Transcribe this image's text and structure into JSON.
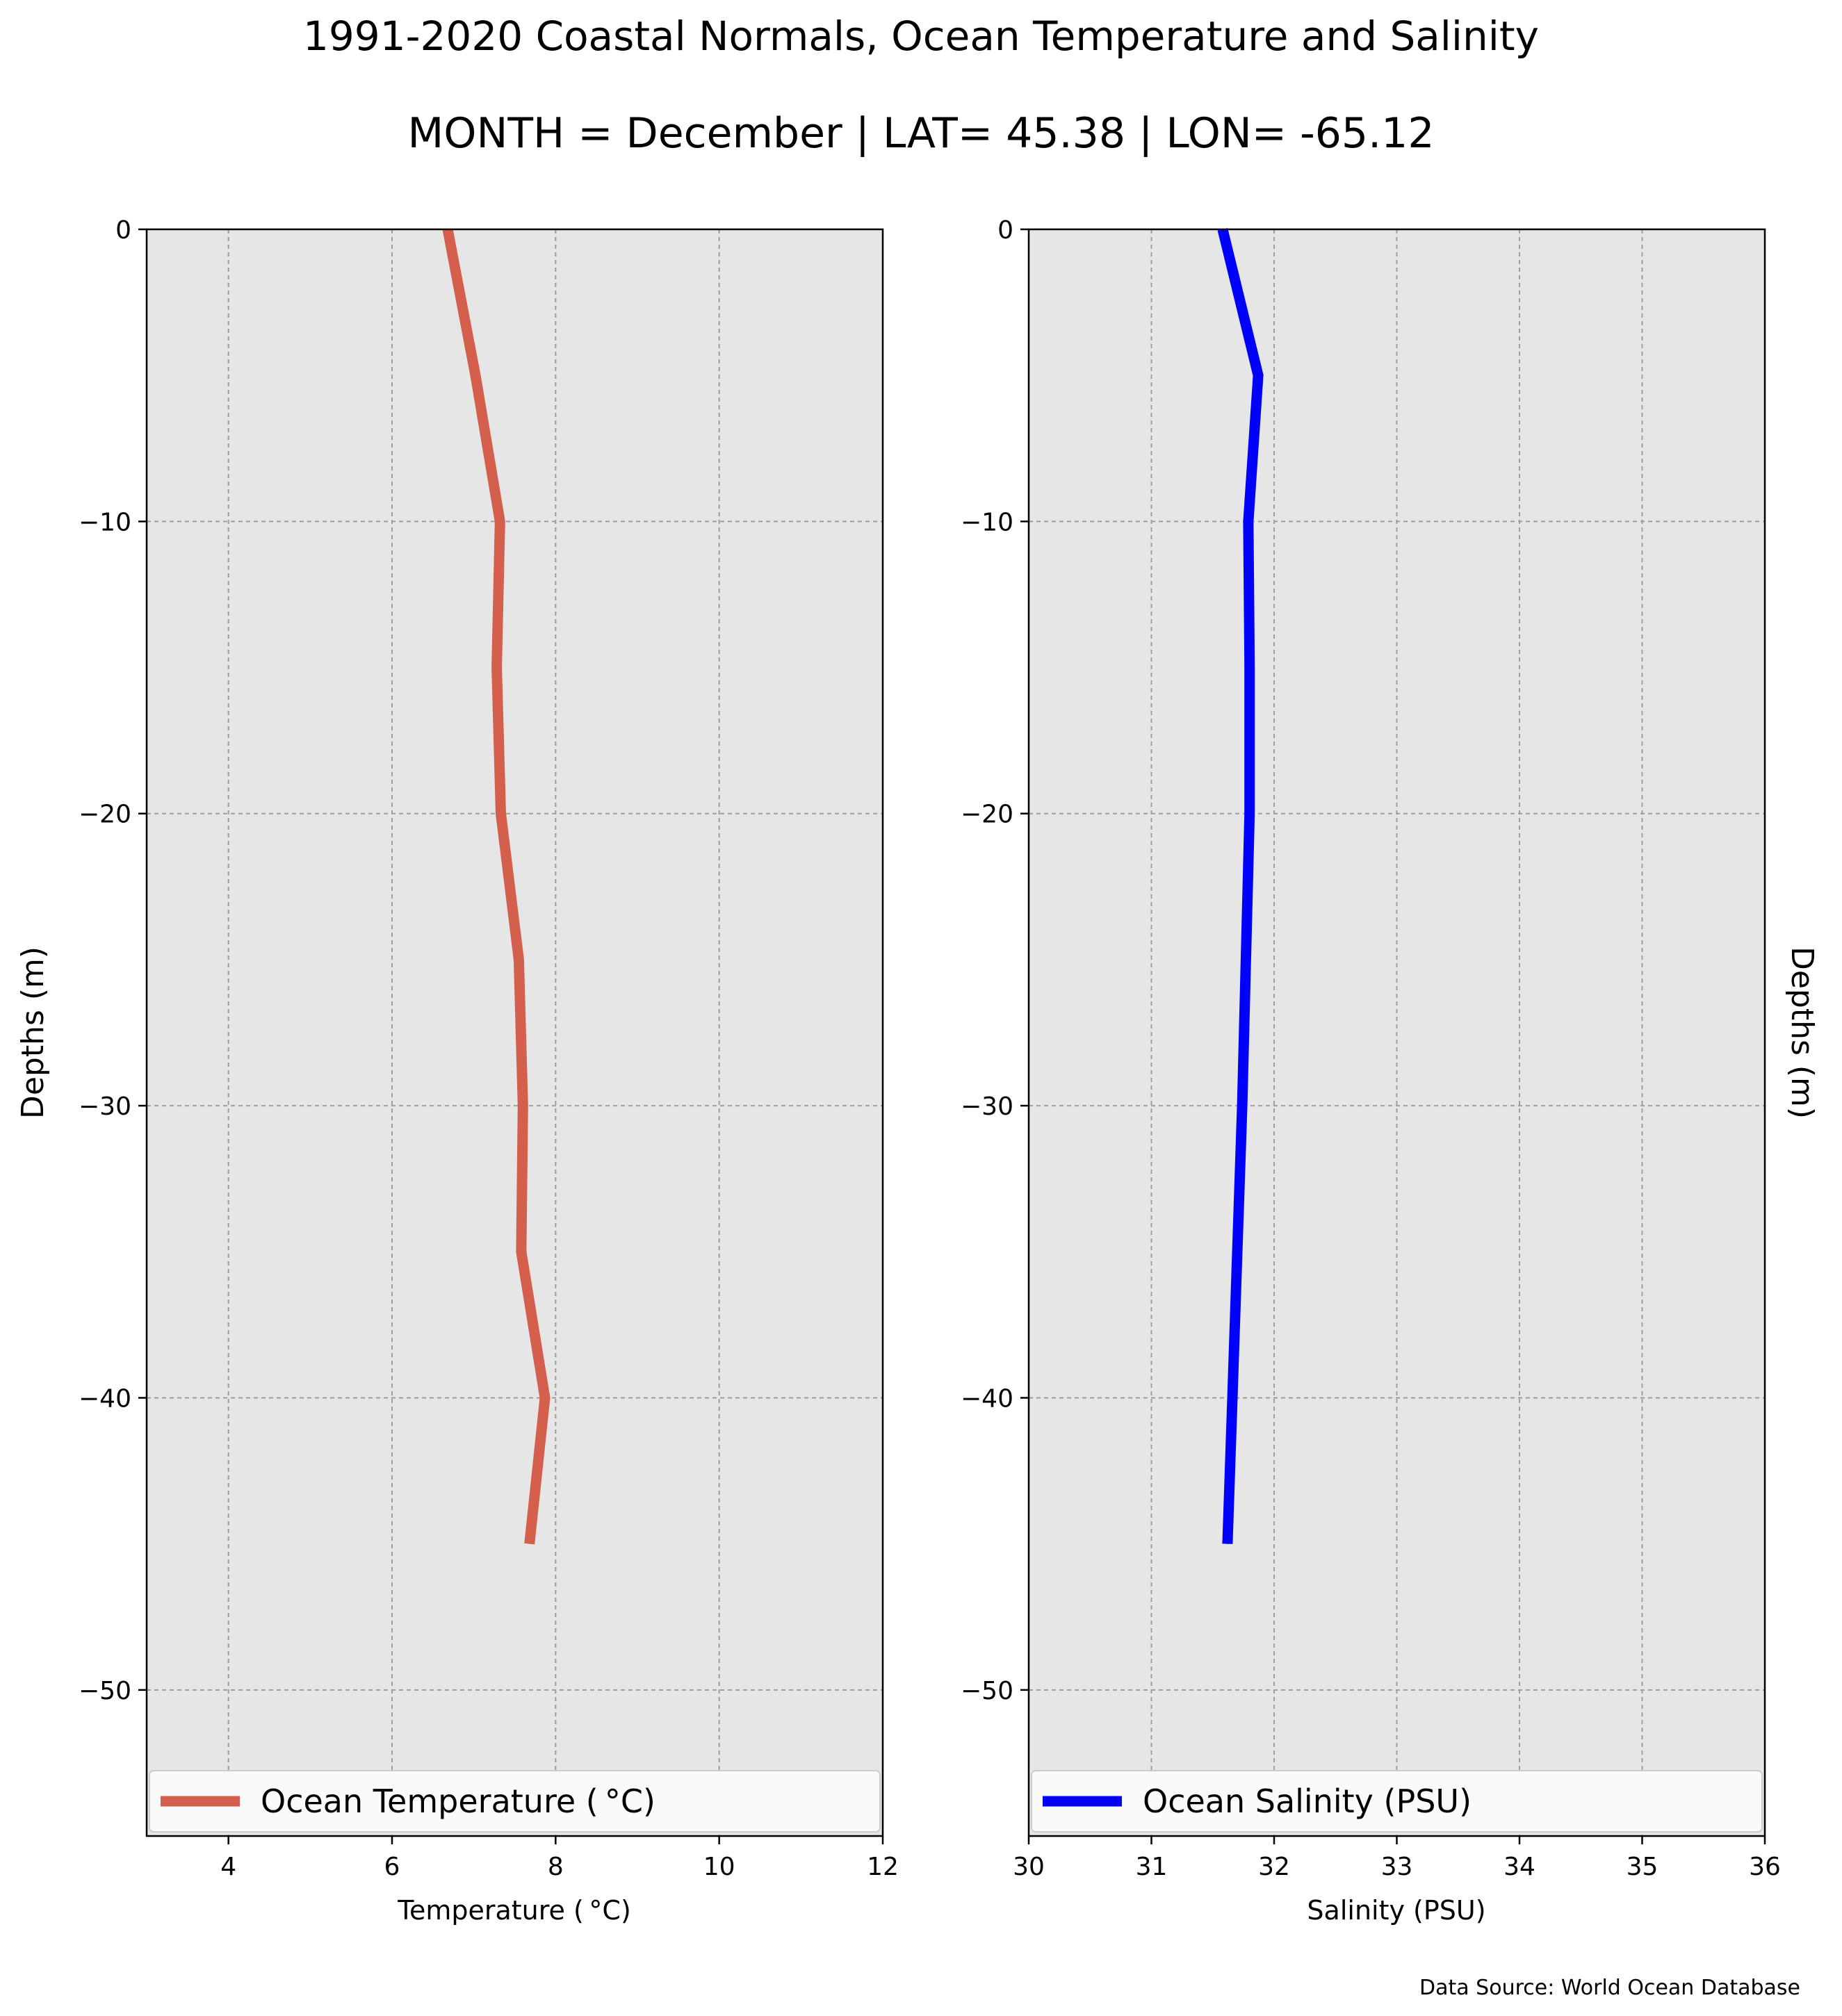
{
  "title": "1991-2020 Coastal Normals, Ocean Temperature and Salinity",
  "subtitle": "MONTH = December | LAT= 45.38 | LON= -65.12",
  "source_note": "Data Source: World Ocean Database",
  "colors": {
    "temperature": "#d45f4d",
    "salinity": "#0000ff",
    "plot_bg": "#e6e6e6",
    "grid": "#9e9e9e"
  },
  "chart_data": [
    {
      "type": "line",
      "xlabel": "Temperature ($^\\circ$C)",
      "ylabel": "Depths (m)",
      "xlabel_display": "Temperature ( °C)",
      "xlim": [
        3,
        12
      ],
      "ylim": [
        -55,
        0
      ],
      "x_ticks": [
        4,
        6,
        8,
        10,
        12
      ],
      "x_tick_labels": [
        "4",
        "6",
        "8",
        "10",
        "12"
      ],
      "y_ticks": [
        0,
        -10,
        -20,
        -30,
        -40,
        -50
      ],
      "y_tick_labels": [
        "0",
        "−10",
        "−20",
        "−30",
        "−40",
        "−50"
      ],
      "grid": true,
      "legend_placement": "lower center",
      "series": [
        {
          "name": "Ocean Temperature ($^\\circ$C)",
          "legend_display": "Ocean Temperature ( °C)",
          "depth": [
            0,
            -5,
            -10,
            -15,
            -20,
            -25,
            -30,
            -35,
            -40,
            -45
          ],
          "values": [
            6.68,
            7.02,
            7.32,
            7.28,
            7.33,
            7.55,
            7.6,
            7.58,
            7.87,
            7.68
          ]
        }
      ]
    },
    {
      "type": "line",
      "xlabel": "Salinity (PSU)",
      "ylabel": "Depths (m)",
      "xlim": [
        30,
        36
      ],
      "ylim": [
        -55,
        0
      ],
      "x_ticks": [
        30,
        31,
        32,
        33,
        34,
        35,
        36
      ],
      "x_tick_labels": [
        "30",
        "31",
        "32",
        "33",
        "34",
        "35",
        "36"
      ],
      "y_ticks": [
        0,
        -10,
        -20,
        -30,
        -40,
        -50
      ],
      "y_tick_labels": [
        "0",
        "−10",
        "−20",
        "−30",
        "−40",
        "−50"
      ],
      "grid": true,
      "legend_placement": "lower center",
      "series": [
        {
          "name": "Ocean Salinity (PSU)",
          "depth": [
            0,
            -5,
            -10,
            -15,
            -20,
            -25,
            -30,
            -35,
            -40,
            -45
          ],
          "values": [
            31.58,
            31.87,
            31.79,
            31.8,
            31.8,
            31.77,
            31.74,
            31.7,
            31.66,
            31.62
          ]
        }
      ]
    }
  ]
}
